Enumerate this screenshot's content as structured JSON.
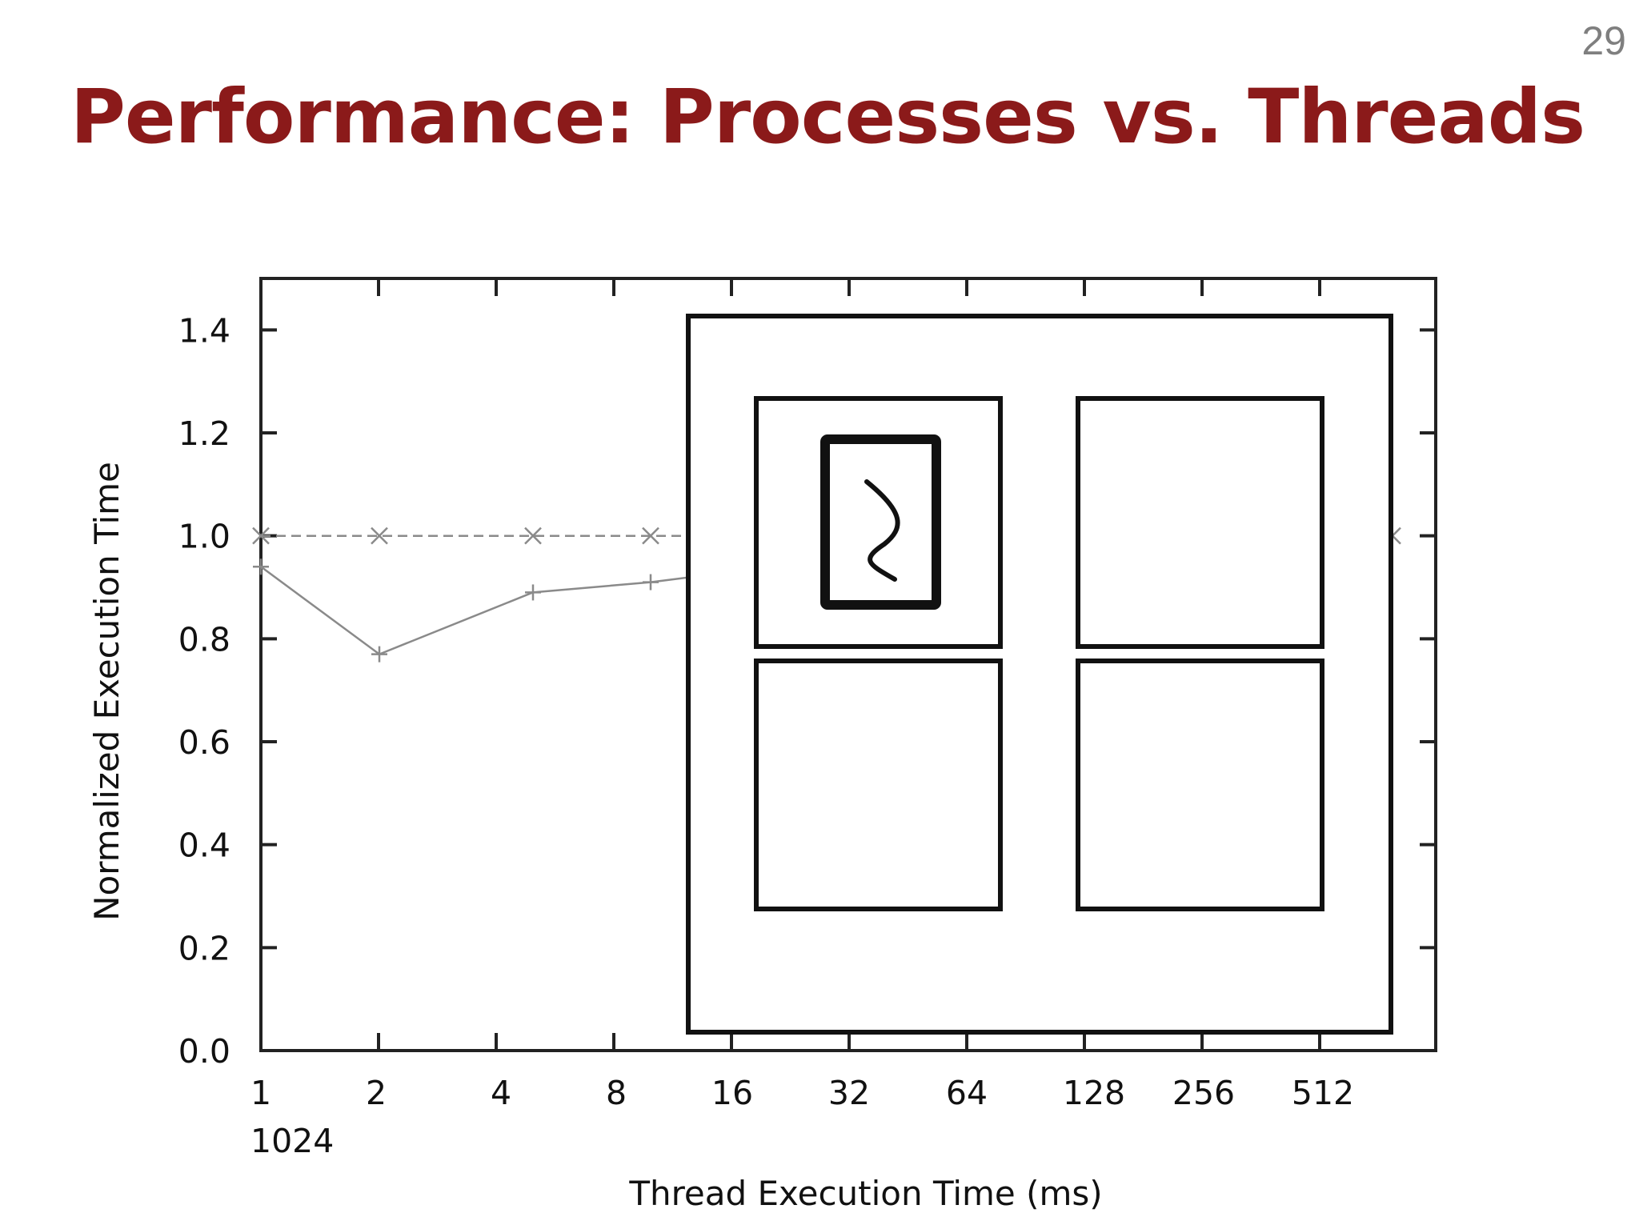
{
  "slide": {
    "number": "29",
    "title": "Performance: Processes vs. Threads"
  },
  "colors": {
    "title": "#8b1a1a",
    "slide_number": "#7f7f7f",
    "axis": "#222222",
    "series": "#8a8a8a"
  },
  "chart_data": {
    "type": "line",
    "xlabel": "Thread Execution Time (ms)",
    "ylabel": "Normalized Execution Time",
    "x_scale": "log2",
    "x_ticks": [
      "1",
      "2",
      "4",
      "8",
      "16",
      "32",
      "64",
      "128",
      "256",
      "512",
      "1024"
    ],
    "y_ticks": [
      "0.0",
      "0.2",
      "0.4",
      "0.6",
      "0.8",
      "1.0",
      "1.2",
      "1.4"
    ],
    "ylim": [
      0.0,
      1.5
    ],
    "grid": false,
    "series": [
      {
        "marker": "x",
        "style": "dashed",
        "x": [
          1,
          2,
          4,
          8,
          1024
        ],
        "values": [
          1.0,
          1.0,
          1.0,
          1.0,
          1.0
        ]
      },
      {
        "marker": "+",
        "style": "solid",
        "x": [
          1,
          2,
          4,
          8,
          16
        ],
        "values": [
          0.94,
          0.77,
          0.89,
          0.91,
          0.94
        ]
      }
    ]
  },
  "overlay": {
    "icon": "processor-cores-icon",
    "description_icon": "thread-icon"
  }
}
